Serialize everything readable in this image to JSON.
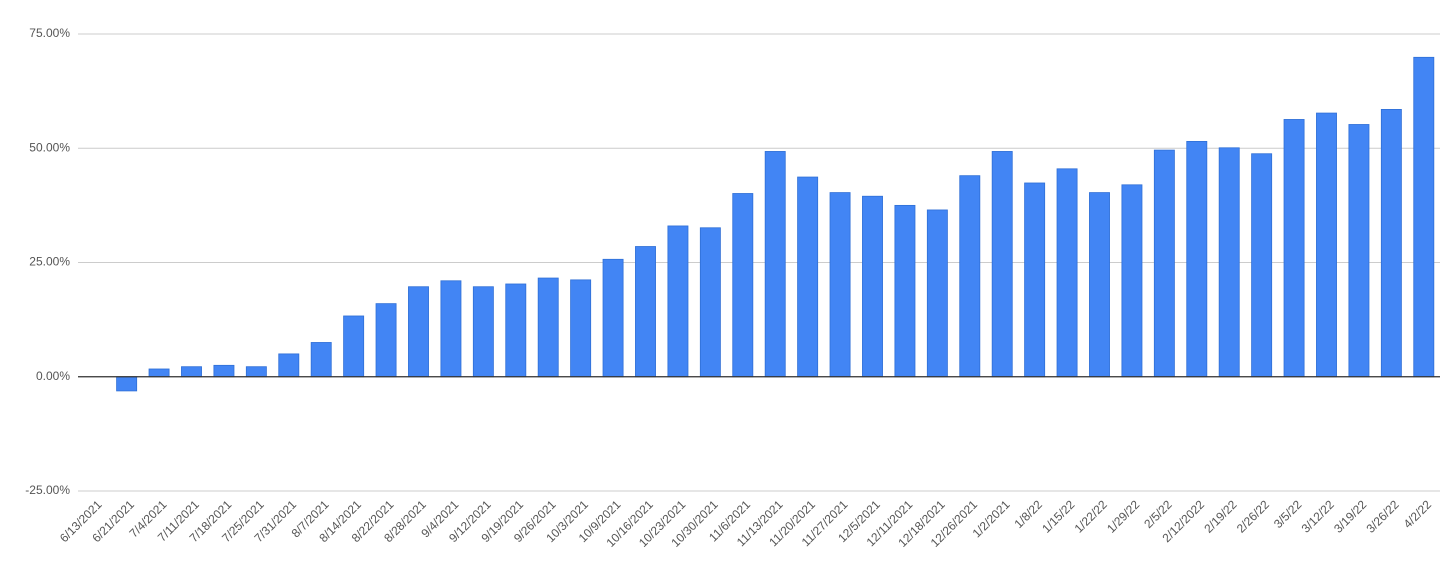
{
  "chart_data": {
    "type": "bar",
    "categories": [
      "6/13/2021",
      "6/21/2021",
      "7/4/2021",
      "7/11/2021",
      "7/18/2021",
      "7/25/2021",
      "7/31/2021",
      "8/7/2021",
      "8/14/2021",
      "8/22/2021",
      "8/28/2021",
      "9/4/2021",
      "9/12/2021",
      "9/19/2021",
      "9/26/2021",
      "10/3/2021",
      "10/9/2021",
      "10/16/2021",
      "10/23/2021",
      "10/30/2021",
      "11/6/2021",
      "11/13/2021",
      "11/20/2021",
      "11/27/2021",
      "12/5/2021",
      "12/11/2021",
      "12/18/2021",
      "12/26/2021",
      "1/2/2021",
      "1/8/22",
      "1/15/22",
      "1/22/22",
      "1/29/22",
      "2/5/22",
      "2/12/2022",
      "2/19/22",
      "2/26/22",
      "3/5/22",
      "3/12/22",
      "3/19/22",
      "3/26/22",
      "4/2/22"
    ],
    "values": [
      0,
      -3.1,
      1.7,
      2.2,
      2.5,
      2.2,
      5.0,
      7.5,
      13.3,
      16.0,
      19.7,
      21.0,
      19.7,
      20.3,
      21.6,
      21.2,
      25.7,
      28.5,
      33.0,
      32.6,
      40.1,
      49.3,
      43.7,
      40.3,
      39.5,
      37.5,
      36.5,
      44.0,
      49.3,
      42.4,
      45.5,
      40.3,
      42.0,
      49.6,
      51.5,
      50.1,
      48.8,
      56.3,
      57.7,
      55.2,
      58.5,
      69.9
    ],
    "color": "#4285f4",
    "ylim": [
      -25,
      75
    ],
    "yticks": [
      {
        "value": -25,
        "label": "-25.00%"
      },
      {
        "value": 0,
        "label": "0.00%"
      },
      {
        "value": 25,
        "label": "25.00%"
      },
      {
        "value": 50,
        "label": "50.00%"
      },
      {
        "value": 75,
        "label": "75.00%"
      }
    ],
    "grid": true
  }
}
